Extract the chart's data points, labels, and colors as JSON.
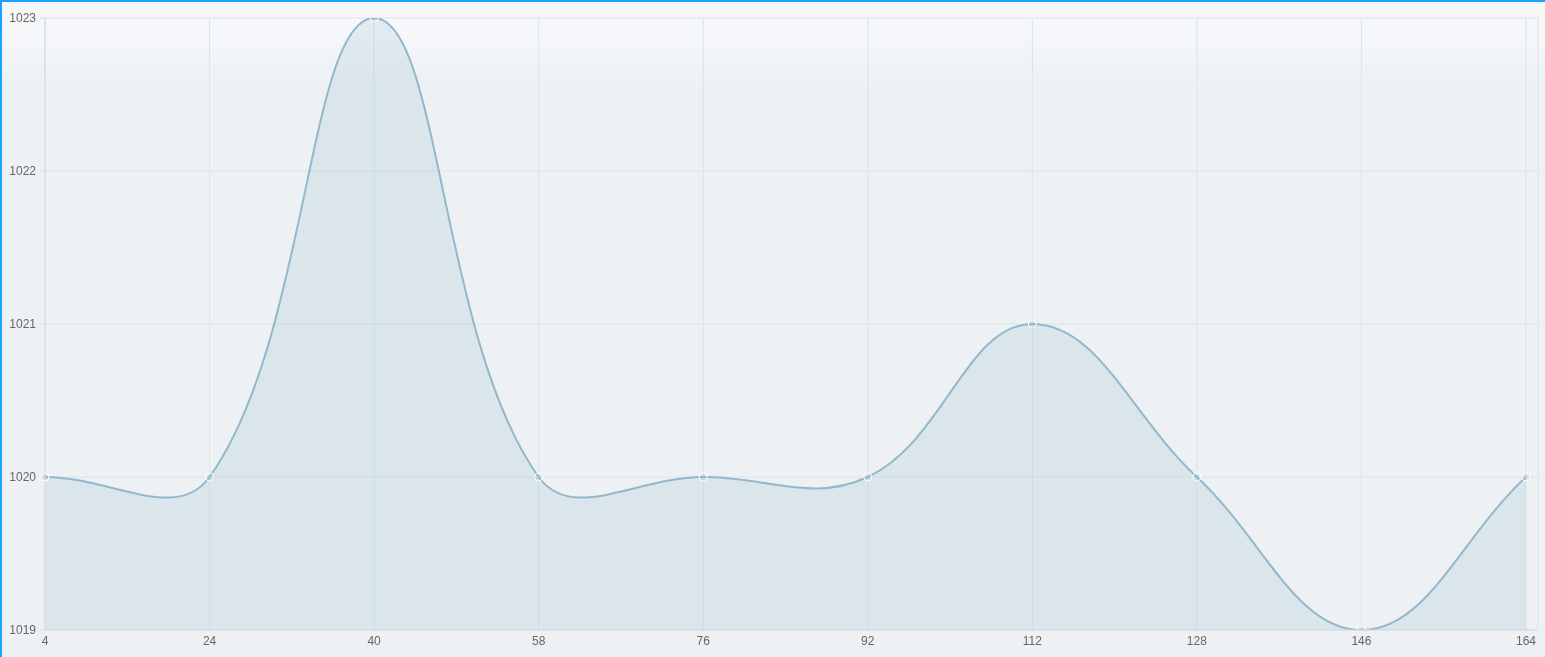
{
  "chart_data": {
    "type": "area",
    "categories": [
      "4",
      "24",
      "40",
      "58",
      "76",
      "92",
      "112",
      "128",
      "146",
      "164"
    ],
    "values": [
      1020,
      1020,
      1023,
      1020,
      1020,
      1020,
      1021,
      1020,
      1019,
      1020
    ],
    "color": "#93b8cc",
    "ylim": [
      1019,
      1023
    ],
    "yticks": [
      1019,
      1020,
      1021,
      1022,
      1023
    ],
    "grid": true,
    "marker": "circle",
    "line_style": "solid"
  }
}
